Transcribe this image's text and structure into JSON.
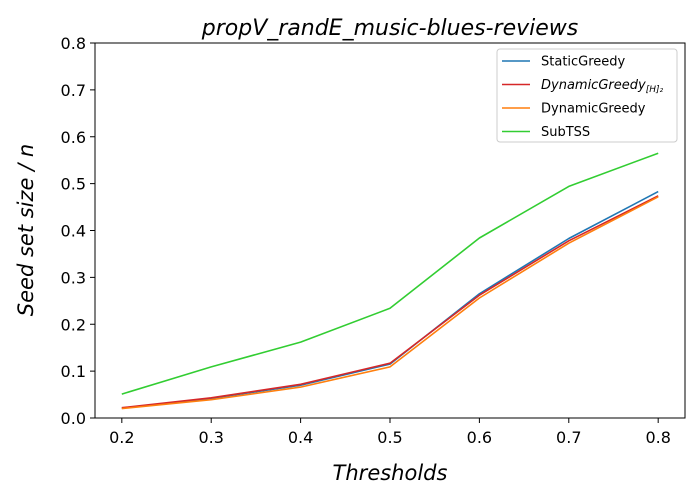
{
  "chart_data": {
    "type": "line",
    "title": "propV_randE_music-blues-reviews",
    "xlabel": "Thresholds",
    "ylabel": "Seed set size / n",
    "x": [
      0.2,
      0.3,
      0.4,
      0.5,
      0.6,
      0.7,
      0.8
    ],
    "x_tick_labels": [
      "0.2",
      "0.3",
      "0.4",
      "0.5",
      "0.6",
      "0.7",
      "0.8"
    ],
    "y_tick_labels": [
      "0.0",
      "0.1",
      "0.2",
      "0.3",
      "0.4",
      "0.5",
      "0.6",
      "0.7",
      "0.8"
    ],
    "xlim": [
      0.17,
      0.83
    ],
    "ylim": [
      0.0,
      0.8
    ],
    "grid": false,
    "legend_position": "top-right",
    "series": [
      {
        "name": "StaticGreedy",
        "color": "#1f77b4",
        "values": [
          0.021,
          0.042,
          0.07,
          0.115,
          0.265,
          0.383,
          0.483
        ]
      },
      {
        "name": "DynamicGreedy",
        "name_subscript": "[H]₂",
        "color": "#d62728",
        "values": [
          0.022,
          0.043,
          0.072,
          0.117,
          0.262,
          0.378,
          0.474
        ]
      },
      {
        "name": "DynamicGreedy",
        "color": "#ff7f0e",
        "values": [
          0.02,
          0.039,
          0.066,
          0.109,
          0.256,
          0.373,
          0.472
        ]
      },
      {
        "name": "SubTSS",
        "color": "#32cd32",
        "values": [
          0.051,
          0.109,
          0.162,
          0.234,
          0.384,
          0.494,
          0.565
        ]
      }
    ]
  }
}
